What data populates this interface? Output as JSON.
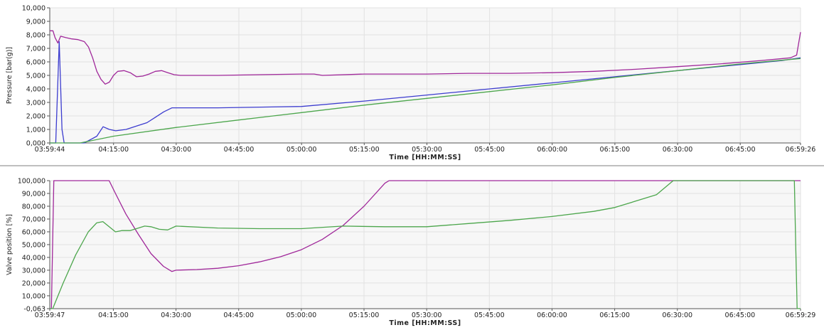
{
  "chart_data": [
    {
      "type": "line",
      "xlabel": "Time [HH:MM:SS]",
      "ylabel": "Pressure [bar(g)]",
      "x_start": "03:59:44",
      "x_end": "06:59:26",
      "xlim": [
        "03:59:44",
        "06:59:26"
      ],
      "ylim": [
        0,
        10000
      ],
      "x_tick_labels": [
        "03:59:44",
        "04:15:00",
        "04:30:00",
        "04:45:00",
        "05:00:00",
        "05:15:00",
        "05:30:00",
        "05:45:00",
        "06:00:00",
        "06:15:00",
        "06:30:00",
        "06:45:00",
        "06:59:26"
      ],
      "y_tick_labels": [
        "0,000",
        "1,000",
        "2,000",
        "3,000",
        "4,000",
        "5,000",
        "6,000",
        "7,000",
        "8,000",
        "9,000",
        "10,000"
      ],
      "grid": true,
      "series": [
        {
          "color": "#a0289a",
          "x": [
            "03:59:44",
            "04:00:30",
            "04:01:00",
            "04:01:40",
            "04:02:20",
            "04:03:30",
            "04:05:00",
            "04:06:30",
            "04:08:00",
            "04:09:00",
            "04:10:00",
            "04:11:00",
            "04:12:00",
            "04:13:00",
            "04:14:00",
            "04:15:00",
            "04:16:00",
            "04:17:30",
            "04:19:00",
            "04:20:30",
            "04:22:00",
            "04:23:30",
            "04:25:00",
            "04:26:30",
            "04:28:00",
            "04:29:30",
            "04:31:00",
            "04:33:00",
            "04:40:00",
            "04:50:00",
            "05:00:00",
            "05:03:00",
            "05:05:00",
            "05:15:00",
            "05:22:00",
            "05:30:00",
            "05:40:00",
            "05:50:00",
            "06:00:00",
            "06:10:00",
            "06:20:00",
            "06:30:00",
            "06:40:00",
            "06:50:00",
            "06:57:00",
            "06:58:30",
            "06:59:26"
          ],
          "y": [
            8300,
            8300,
            7800,
            7400,
            7900,
            7800,
            7700,
            7650,
            7500,
            7100,
            6300,
            5300,
            4700,
            4350,
            4500,
            5000,
            5300,
            5350,
            5200,
            4900,
            4950,
            5100,
            5300,
            5350,
            5200,
            5050,
            5000,
            5000,
            5000,
            5050,
            5100,
            5100,
            5000,
            5100,
            5100,
            5100,
            5150,
            5150,
            5200,
            5300,
            5450,
            5650,
            5850,
            6100,
            6300,
            6500,
            8200
          ]
        },
        {
          "color": "#3c3ccf",
          "x": [
            "03:59:44",
            "04:01:10",
            "04:02:00",
            "04:02:40",
            "04:03:10",
            "04:05:00",
            "04:08:00",
            "04:11:00",
            "04:12:30",
            "04:14:00",
            "04:15:30",
            "04:18:00",
            "04:21:00",
            "04:23:00",
            "04:25:00",
            "04:27:00",
            "04:29:00",
            "04:30:00",
            "04:40:00",
            "05:00:00",
            "05:15:00",
            "05:30:00",
            "05:45:00",
            "06:00:00",
            "06:15:00",
            "06:30:00",
            "06:45:00",
            "06:55:00",
            "06:59:26"
          ],
          "y": [
            0,
            0,
            7500,
            1000,
            0,
            0,
            0,
            500,
            1200,
            1000,
            900,
            1000,
            1300,
            1500,
            1900,
            2300,
            2600,
            2600,
            2600,
            2700,
            3100,
            3550,
            4000,
            4450,
            4900,
            5350,
            5800,
            6100,
            6300
          ]
        },
        {
          "color": "#4ca64c",
          "x": [
            "03:59:44",
            "04:07:00",
            "04:15:00",
            "04:30:00",
            "04:45:00",
            "05:00:00",
            "05:15:00",
            "05:30:00",
            "05:45:00",
            "06:00:00",
            "06:15:00",
            "06:30:00",
            "06:45:00",
            "06:59:26"
          ],
          "y": [
            0,
            0,
            500,
            1150,
            1700,
            2250,
            2800,
            3300,
            3800,
            4300,
            4850,
            5350,
            5850,
            6250
          ]
        }
      ]
    },
    {
      "type": "line",
      "xlabel": "Time [HH:MM:SS]",
      "ylabel": "Valve position [%]",
      "x_start": "03:59:47",
      "x_end": "06:59:29",
      "xlim": [
        "03:59:47",
        "06:59:29"
      ],
      "ylim": [
        -0.063,
        100
      ],
      "x_tick_labels": [
        "03:59:47",
        "04:15:00",
        "04:30:00",
        "04:45:00",
        "05:00:00",
        "05:15:00",
        "05:30:00",
        "05:45:00",
        "06:00:00",
        "06:15:00",
        "06:30:00",
        "06:45:00",
        "06:59:29"
      ],
      "y_tick_labels": [
        "-0,063",
        "10,000",
        "20,000",
        "30,000",
        "40,000",
        "50,000",
        "60,000",
        "70,000",
        "80,000",
        "90,000",
        "100,000"
      ],
      "grid": true,
      "series": [
        {
          "color": "#a0289a",
          "x": [
            "03:59:47",
            "04:00:10",
            "04:00:45",
            "04:01:00",
            "04:14:00",
            "04:15:30",
            "04:18:00",
            "04:21:00",
            "04:24:00",
            "04:27:00",
            "04:29:00",
            "04:30:00",
            "04:35:00",
            "04:40:00",
            "04:45:00",
            "04:50:00",
            "04:55:00",
            "05:00:00",
            "05:05:00",
            "05:10:00",
            "05:15:00",
            "05:20:00",
            "05:21:00",
            "06:30:00",
            "06:59:29"
          ],
          "y": [
            -0.063,
            -0.063,
            100,
            100,
            100,
            90,
            74,
            58,
            43,
            33,
            29,
            30,
            30.5,
            31.5,
            33.5,
            36.5,
            40.5,
            46,
            54,
            65,
            80,
            98,
            100,
            100,
            100
          ]
        },
        {
          "color": "#4ca64c",
          "x": [
            "03:59:47",
            "04:00:30",
            "04:03:00",
            "04:06:00",
            "04:09:00",
            "04:11:00",
            "04:12:30",
            "04:14:00",
            "04:15:30",
            "04:17:00",
            "04:19:00",
            "04:21:00",
            "04:22:30",
            "04:24:00",
            "04:26:00",
            "04:28:00",
            "04:30:00",
            "04:40:00",
            "04:50:00",
            "05:00:00",
            "05:10:00",
            "05:20:00",
            "05:30:00",
            "05:40:00",
            "05:50:00",
            "06:00:00",
            "06:10:00",
            "06:15:00",
            "06:20:00",
            "06:25:00",
            "06:29:00",
            "06:58:00",
            "06:58:20",
            "06:58:40",
            "06:59:29"
          ],
          "y": [
            -0.063,
            0,
            20,
            42,
            60,
            67,
            68,
            64,
            60,
            61,
            61,
            63,
            64.5,
            64,
            62,
            61.5,
            64.5,
            63,
            62.5,
            62.5,
            64.5,
            64,
            64,
            66.5,
            69,
            72,
            76,
            79,
            84,
            89,
            100,
            100,
            50,
            0,
            0
          ]
        }
      ]
    }
  ]
}
